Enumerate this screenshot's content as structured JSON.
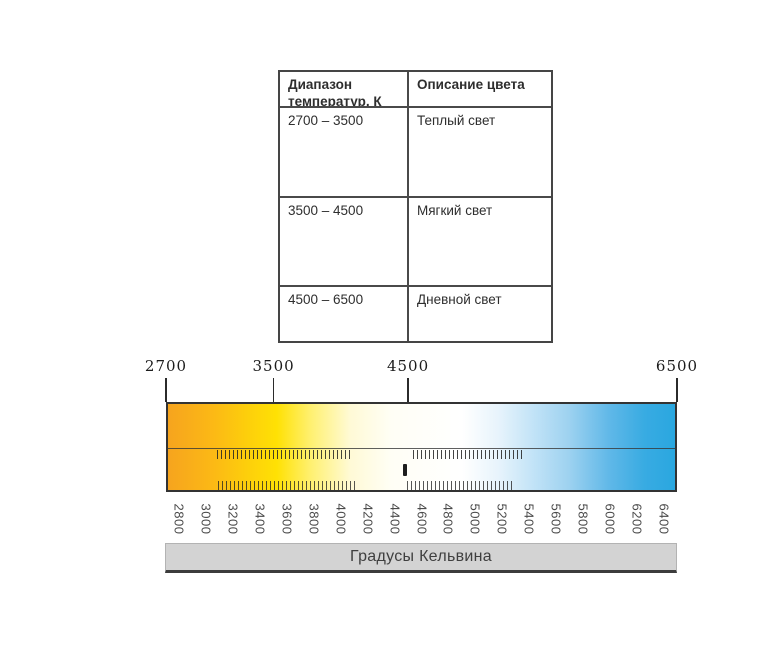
{
  "table": {
    "headers": [
      "Диапазон температур, К",
      "Описание цвета"
    ],
    "rows": [
      {
        "range": "2700 – 3500",
        "description": "Теплый  свет"
      },
      {
        "range": "3500 – 4500",
        "description": "Мягкий свет"
      },
      {
        "range": "4500 – 6500",
        "description": "Дневной свет"
      }
    ]
  },
  "scale": {
    "kelvin_min": 2700,
    "kelvin_max": 6500,
    "top_labels": [
      "2700",
      "3500",
      "4500",
      "6500"
    ],
    "top_values": [
      2700,
      3500,
      4500,
      6500
    ],
    "tick_labels": [
      "2800",
      "3000",
      "3200",
      "3400",
      "3600",
      "3800",
      "4000",
      "4200",
      "4400",
      "4600",
      "4800",
      "5000",
      "5200",
      "5400",
      "5600",
      "5800",
      "6000",
      "6200",
      "6400"
    ],
    "axis_title": "Градусы Кельвина",
    "gradient_stops": [
      {
        "pos": 0.0,
        "color": "#f6a41e"
      },
      {
        "pos": 0.09,
        "color": "#fcb915"
      },
      {
        "pos": 0.16,
        "color": "#fdd00b"
      },
      {
        "pos": 0.215,
        "color": "#ffe104"
      },
      {
        "pos": 0.28,
        "color": "#fff06e"
      },
      {
        "pos": 0.36,
        "color": "#fffad6"
      },
      {
        "pos": 0.44,
        "color": "#fffef5"
      },
      {
        "pos": 0.58,
        "color": "#ffffff"
      },
      {
        "pos": 0.65,
        "color": "#e8f4fc"
      },
      {
        "pos": 0.72,
        "color": "#c2e3f7"
      },
      {
        "pos": 0.79,
        "color": "#9ed2f0"
      },
      {
        "pos": 0.87,
        "color": "#60b8e8"
      },
      {
        "pos": 0.94,
        "color": "#38abe2"
      },
      {
        "pos": 1.0,
        "color": "#2aa7e0"
      }
    ]
  }
}
